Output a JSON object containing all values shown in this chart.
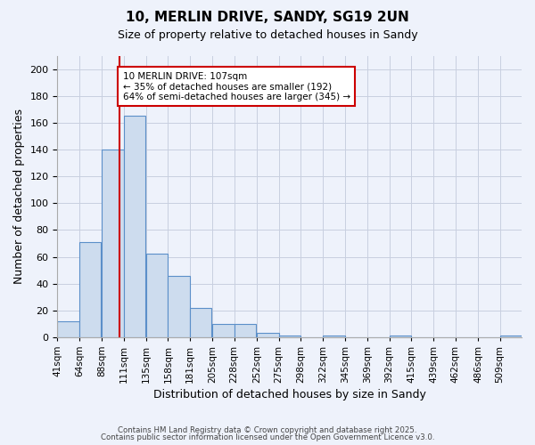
{
  "title": "10, MERLIN DRIVE, SANDY, SG19 2UN",
  "subtitle": "Size of property relative to detached houses in Sandy",
  "xlabel": "Distribution of detached houses by size in Sandy",
  "ylabel": "Number of detached properties",
  "bar_values": [
    12,
    71,
    140,
    165,
    62,
    46,
    22,
    10,
    10,
    3,
    1,
    0,
    1,
    0,
    0,
    1,
    0,
    0,
    0,
    0,
    1
  ],
  "bar_labels": [
    "41sqm",
    "64sqm",
    "88sqm",
    "111sqm",
    "135sqm",
    "158sqm",
    "181sqm",
    "205sqm",
    "228sqm",
    "252sqm",
    "275sqm",
    "298sqm",
    "322sqm",
    "345sqm",
    "369sqm",
    "392sqm",
    "415sqm",
    "439sqm",
    "462sqm",
    "486sqm",
    "509sqm"
  ],
  "bar_color": "#cddcee",
  "bar_edge_color": "#5b8fc9",
  "annotation_text_line1": "10 MERLIN DRIVE: 107sqm",
  "annotation_text_line2": "← 35% of detached houses are smaller (192)",
  "annotation_text_line3": "64% of semi-detached houses are larger (345) →",
  "annotation_box_color": "#ffffff",
  "annotation_box_edge": "#cc0000",
  "vline_color": "#cc0000",
  "vline_x": 107,
  "ylim": [
    0,
    210
  ],
  "yticks": [
    0,
    20,
    40,
    60,
    80,
    100,
    120,
    140,
    160,
    180,
    200
  ],
  "footer_line1": "Contains HM Land Registry data © Crown copyright and database right 2025.",
  "footer_line2": "Contains public sector information licensed under the Open Government Licence v3.0.",
  "background_color": "#eef2fb",
  "grid_color": "#c8cfe0",
  "bin_edges": [
    41,
    64,
    88,
    111,
    135,
    158,
    181,
    205,
    228,
    252,
    275,
    298,
    322,
    345,
    369,
    392,
    415,
    439,
    462,
    486,
    509
  ],
  "bin_width": 23
}
